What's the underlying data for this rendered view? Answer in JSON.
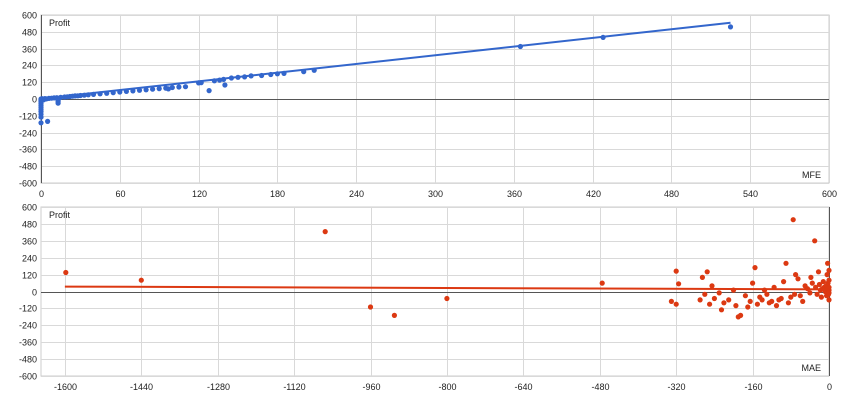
{
  "chart_data": [
    {
      "type": "scatter",
      "title": "",
      "ylabel": "Profit",
      "xlabel": "MFE",
      "xlim": [
        0,
        600
      ],
      "ylim": [
        -600,
        600
      ],
      "xticks": [
        0,
        60,
        120,
        180,
        240,
        300,
        360,
        420,
        480,
        540,
        600
      ],
      "yticks": [
        600,
        480,
        360,
        240,
        120,
        0,
        -120,
        -240,
        -360,
        -480,
        -600
      ],
      "grid": true,
      "point_color": "#3366cc",
      "trend_color": "#3366cc",
      "trendline": {
        "x": [
          0,
          525
        ],
        "y": [
          2,
          545
        ]
      },
      "points": [
        [
          0,
          -170
        ],
        [
          5,
          -160
        ],
        [
          0,
          -130
        ],
        [
          0,
          -110
        ],
        [
          0,
          -90
        ],
        [
          0,
          -75
        ],
        [
          0,
          -60
        ],
        [
          0,
          -45
        ],
        [
          0,
          -30
        ],
        [
          0,
          -20
        ],
        [
          0,
          -12
        ],
        [
          0,
          -5
        ],
        [
          0,
          0
        ],
        [
          1,
          2
        ],
        [
          2,
          -6
        ],
        [
          3,
          3
        ],
        [
          4,
          1
        ],
        [
          13,
          -30
        ],
        [
          13,
          -20
        ],
        [
          13,
          -10
        ],
        [
          13,
          -5
        ],
        [
          6,
          4
        ],
        [
          8,
          6
        ],
        [
          10,
          8
        ],
        [
          12,
          9
        ],
        [
          15,
          12
        ],
        [
          18,
          14
        ],
        [
          20,
          16
        ],
        [
          22,
          18
        ],
        [
          24,
          20
        ],
        [
          26,
          22
        ],
        [
          28,
          23
        ],
        [
          30,
          25
        ],
        [
          33,
          27
        ],
        [
          36,
          30
        ],
        [
          40,
          33
        ],
        [
          45,
          37
        ],
        [
          50,
          41
        ],
        [
          55,
          45
        ],
        [
          60,
          50
        ],
        [
          65,
          54
        ],
        [
          70,
          58
        ],
        [
          75,
          62
        ],
        [
          80,
          66
        ],
        [
          85,
          70
        ],
        [
          90,
          74
        ],
        [
          95,
          78
        ],
        [
          97,
          72
        ],
        [
          100,
          82
        ],
        [
          105,
          86
        ],
        [
          110,
          88
        ],
        [
          120,
          115
        ],
        [
          122,
          117
        ],
        [
          128,
          60
        ],
        [
          132,
          130
        ],
        [
          136,
          135
        ],
        [
          139,
          140
        ],
        [
          140,
          100
        ],
        [
          145,
          150
        ],
        [
          150,
          155
        ],
        [
          155,
          158
        ],
        [
          160,
          165
        ],
        [
          168,
          168
        ],
        [
          175,
          175
        ],
        [
          180,
          180
        ],
        [
          185,
          183
        ],
        [
          200,
          195
        ],
        [
          208,
          205
        ],
        [
          365,
          375
        ],
        [
          428,
          440
        ],
        [
          525,
          515
        ]
      ]
    },
    {
      "type": "scatter",
      "title": "",
      "ylabel": "Profit",
      "xlabel": "MAE",
      "xlim": [
        -1650,
        0
      ],
      "ylim": [
        -600,
        600
      ],
      "xticks": [
        -1600,
        -1440,
        -1280,
        -1120,
        -960,
        -800,
        -640,
        -480,
        -320,
        -160,
        0
      ],
      "yticks": [
        600,
        480,
        360,
        240,
        120,
        0,
        -120,
        -240,
        -360,
        -480,
        -600
      ],
      "grid": true,
      "point_color": "#dc3912",
      "trend_color": "#dc3912",
      "trendline": {
        "x": [
          -1600,
          0
        ],
        "y": [
          35,
          15
        ]
      },
      "points": [
        [
          -1598,
          135
        ],
        [
          -1440,
          80
        ],
        [
          -1055,
          425
        ],
        [
          -960,
          -110
        ],
        [
          -910,
          -170
        ],
        [
          -800,
          -50
        ],
        [
          -475,
          60
        ],
        [
          -320,
          145
        ],
        [
          -315,
          55
        ],
        [
          -330,
          -70
        ],
        [
          -320,
          -90
        ],
        [
          -270,
          -60
        ],
        [
          -265,
          100
        ],
        [
          -260,
          -20
        ],
        [
          -255,
          140
        ],
        [
          -250,
          -90
        ],
        [
          -245,
          40
        ],
        [
          -240,
          -50
        ],
        [
          -230,
          -10
        ],
        [
          -225,
          -130
        ],
        [
          -220,
          -80
        ],
        [
          -210,
          -60
        ],
        [
          -200,
          10
        ],
        [
          -195,
          -100
        ],
        [
          -190,
          -180
        ],
        [
          -185,
          -170
        ],
        [
          -175,
          -30
        ],
        [
          -170,
          -110
        ],
        [
          -165,
          -70
        ],
        [
          -160,
          60
        ],
        [
          -155,
          170
        ],
        [
          -150,
          -90
        ],
        [
          -145,
          -40
        ],
        [
          -140,
          -60
        ],
        [
          -135,
          10
        ],
        [
          -130,
          -20
        ],
        [
          -125,
          -80
        ],
        [
          -120,
          -70
        ],
        [
          -115,
          30
        ],
        [
          -110,
          -100
        ],
        [
          -105,
          -60
        ],
        [
          -100,
          -50
        ],
        [
          -95,
          70
        ],
        [
          -90,
          200
        ],
        [
          -85,
          -80
        ],
        [
          -80,
          -40
        ],
        [
          -75,
          510
        ],
        [
          -72,
          -20
        ],
        [
          -70,
          120
        ],
        [
          -65,
          90
        ],
        [
          -60,
          -30
        ],
        [
          -55,
          -70
        ],
        [
          -50,
          40
        ],
        [
          -45,
          20
        ],
        [
          -40,
          -10
        ],
        [
          -38,
          100
        ],
        [
          -35,
          60
        ],
        [
          -30,
          360
        ],
        [
          -28,
          30
        ],
        [
          -25,
          -20
        ],
        [
          -22,
          140
        ],
        [
          -20,
          50
        ],
        [
          -18,
          10
        ],
        [
          -16,
          -40
        ],
        [
          -14,
          20
        ],
        [
          -12,
          70
        ],
        [
          -10,
          30
        ],
        [
          -8,
          0
        ],
        [
          -6,
          40
        ],
        [
          -5,
          -30
        ],
        [
          -4,
          120
        ],
        [
          -3,
          200
        ],
        [
          -2,
          60
        ],
        [
          -1,
          -20
        ],
        [
          0,
          10
        ],
        [
          0,
          80
        ],
        [
          0,
          -60
        ],
        [
          0,
          30
        ],
        [
          0,
          -10
        ],
        [
          0,
          150
        ]
      ]
    }
  ]
}
